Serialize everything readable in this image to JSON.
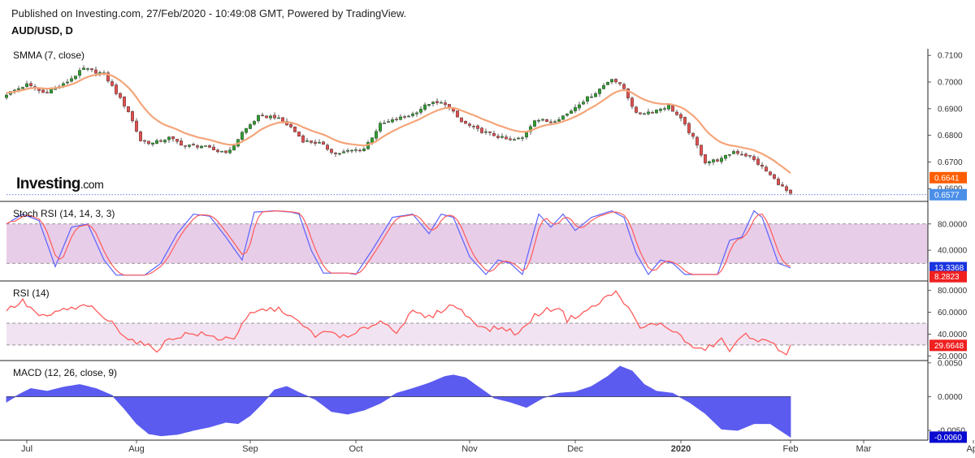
{
  "header": {
    "published": "Published on Investing.com, 27/Feb/2020 - 10:49:08 GMT, Powered by TradingView.",
    "symbol": "AUD/USD, D"
  },
  "logo": {
    "text": "Investing",
    "suffix": ".com"
  },
  "colors": {
    "up": "#2e9e2e",
    "down": "#e05050",
    "smma": "#f4a57a",
    "stoch_k": "#5b62ff",
    "stoch_d": "#ff5b5b",
    "rsi": "#ff5b5b",
    "macd": "#5b5bf0",
    "band": "#e8cde8",
    "rsi_band": "#f1e3f1"
  },
  "chart_data": [
    {
      "type": "candlestick",
      "title": "SMMA (7, close)",
      "y_ticks": [
        "0.7100",
        "0.7000",
        "0.6900",
        "0.6800",
        "0.6700",
        "0.6600"
      ],
      "ylim": [
        0.6555,
        0.7125
      ],
      "last_price": "0.6577",
      "last_smma": "0.6641",
      "knots": [
        [
          0,
          0.6955
        ],
        [
          5,
          0.699
        ],
        [
          9,
          0.696
        ],
        [
          14,
          0.699
        ],
        [
          19,
          0.705
        ],
        [
          24,
          0.703
        ],
        [
          27,
          0.696
        ],
        [
          30,
          0.689
        ],
        [
          33,
          0.678
        ],
        [
          36,
          0.677
        ],
        [
          40,
          0.679
        ],
        [
          44,
          0.676
        ],
        [
          48,
          0.676
        ],
        [
          52,
          0.674
        ],
        [
          55,
          0.674
        ],
        [
          58,
          0.681
        ],
        [
          62,
          0.687
        ],
        [
          66,
          0.687
        ],
        [
          70,
          0.683
        ],
        [
          73,
          0.678
        ],
        [
          77,
          0.677
        ],
        [
          81,
          0.673
        ],
        [
          84,
          0.674
        ],
        [
          88,
          0.675
        ],
        [
          92,
          0.684
        ],
        [
          96,
          0.686
        ],
        [
          100,
          0.688
        ],
        [
          104,
          0.692
        ],
        [
          108,
          0.692
        ],
        [
          112,
          0.685
        ],
        [
          116,
          0.682
        ],
        [
          120,
          0.68
        ],
        [
          124,
          0.678
        ],
        [
          127,
          0.679
        ],
        [
          130,
          0.686
        ],
        [
          134,
          0.685
        ],
        [
          138,
          0.688
        ],
        [
          141,
          0.692
        ],
        [
          145,
          0.696
        ],
        [
          149,
          0.7015
        ],
        [
          152,
          0.6975
        ],
        [
          155,
          0.688
        ],
        [
          159,
          0.689
        ],
        [
          163,
          0.691
        ],
        [
          166,
          0.686
        ],
        [
          169,
          0.679
        ],
        [
          172,
          0.67
        ],
        [
          176,
          0.671
        ],
        [
          179,
          0.674
        ],
        [
          183,
          0.672
        ],
        [
          186,
          0.668
        ],
        [
          190,
          0.662
        ],
        [
          193,
          0.6577
        ]
      ],
      "x_labels": [
        {
          "label": "Jul",
          "day": 5
        },
        {
          "label": "Aug",
          "day": 32
        },
        {
          "label": "Sep",
          "day": 60
        },
        {
          "label": "Oct",
          "day": 86
        },
        {
          "label": "Nov",
          "day": 114
        },
        {
          "label": "Dec",
          "day": 140
        },
        {
          "label": "2020",
          "day": 166
        },
        {
          "label": "Feb",
          "day": 193
        },
        {
          "label": "Mar",
          "day": 211
        },
        {
          "label": "Apr",
          "day": 238
        }
      ]
    },
    {
      "type": "line",
      "title": "Stoch RSI (14, 14, 3, 3)",
      "y_ticks": [
        "80.0000",
        "40.0000"
      ],
      "ylim": [
        -2,
        102
      ],
      "band": [
        20,
        80
      ],
      "last_k": "13.3368",
      "last_d": "8.2823",
      "knots": [
        [
          0,
          80
        ],
        [
          4,
          95
        ],
        [
          8,
          85
        ],
        [
          12,
          15
        ],
        [
          16,
          75
        ],
        [
          20,
          80
        ],
        [
          24,
          25
        ],
        [
          27,
          2
        ],
        [
          34,
          2
        ],
        [
          38,
          20
        ],
        [
          42,
          65
        ],
        [
          46,
          95
        ],
        [
          50,
          92
        ],
        [
          54,
          60
        ],
        [
          58,
          25
        ],
        [
          61,
          98
        ],
        [
          66,
          100
        ],
        [
          70,
          98
        ],
        [
          72,
          95
        ],
        [
          75,
          40
        ],
        [
          78,
          5
        ],
        [
          84,
          5
        ],
        [
          86,
          3
        ],
        [
          90,
          40
        ],
        [
          95,
          90
        ],
        [
          100,
          95
        ],
        [
          104,
          65
        ],
        [
          107,
          95
        ],
        [
          110,
          90
        ],
        [
          114,
          30
        ],
        [
          118,
          3
        ],
        [
          121,
          25
        ],
        [
          124,
          20
        ],
        [
          127,
          3
        ],
        [
          131,
          95
        ],
        [
          134,
          75
        ],
        [
          137,
          95
        ],
        [
          140,
          70
        ],
        [
          144,
          90
        ],
        [
          149,
          100
        ],
        [
          152,
          90
        ],
        [
          155,
          35
        ],
        [
          158,
          3
        ],
        [
          161,
          25
        ],
        [
          164,
          20
        ],
        [
          167,
          3
        ],
        [
          171,
          3
        ],
        [
          175,
          3
        ],
        [
          178,
          55
        ],
        [
          181,
          60
        ],
        [
          184,
          100
        ],
        [
          186,
          90
        ],
        [
          190,
          20
        ],
        [
          193,
          13
        ]
      ]
    },
    {
      "type": "line",
      "title": "RSI (14)",
      "y_ticks": [
        "80.0000",
        "60.0000",
        "40.0000",
        "20.0000"
      ],
      "ylim": [
        18,
        82
      ],
      "band": [
        30,
        50
      ],
      "last_value": "29.6648",
      "knots": [
        [
          0,
          62
        ],
        [
          4,
          70
        ],
        [
          8,
          57
        ],
        [
          10,
          55
        ],
        [
          13,
          62
        ],
        [
          17,
          63
        ],
        [
          20,
          67
        ],
        [
          22,
          60
        ],
        [
          26,
          50
        ],
        [
          30,
          36
        ],
        [
          34,
          30
        ],
        [
          37,
          26
        ],
        [
          40,
          35
        ],
        [
          44,
          40
        ],
        [
          48,
          40
        ],
        [
          52,
          36
        ],
        [
          56,
          37
        ],
        [
          60,
          58
        ],
        [
          64,
          63
        ],
        [
          68,
          62
        ],
        [
          72,
          50
        ],
        [
          76,
          39
        ],
        [
          80,
          42
        ],
        [
          84,
          36
        ],
        [
          88,
          45
        ],
        [
          92,
          52
        ],
        [
          96,
          43
        ],
        [
          100,
          60
        ],
        [
          104,
          55
        ],
        [
          108,
          64
        ],
        [
          110,
          67
        ],
        [
          114,
          55
        ],
        [
          118,
          44
        ],
        [
          122,
          46
        ],
        [
          126,
          40
        ],
        [
          130,
          57
        ],
        [
          133,
          62
        ],
        [
          136,
          65
        ],
        [
          138,
          53
        ],
        [
          142,
          60
        ],
        [
          145,
          66
        ],
        [
          148,
          75
        ],
        [
          150,
          78
        ],
        [
          152,
          70
        ],
        [
          156,
          45
        ],
        [
          160,
          50
        ],
        [
          164,
          44
        ],
        [
          167,
          34
        ],
        [
          170,
          25
        ],
        [
          173,
          28
        ],
        [
          176,
          35
        ],
        [
          178,
          25
        ],
        [
          182,
          40
        ],
        [
          185,
          35
        ],
        [
          189,
          30
        ],
        [
          192,
          22
        ],
        [
          193,
          30
        ]
      ]
    },
    {
      "type": "area",
      "title": "MACD (12, 26, close, 9)",
      "y_ticks": [
        "0.0050",
        "0.0000",
        "-0.0050"
      ],
      "ylim": [
        -0.0062,
        0.0051
      ],
      "last_value": "-0.0060",
      "knots": [
        [
          0,
          -0.0008
        ],
        [
          3,
          0.0003
        ],
        [
          6,
          0.0012
        ],
        [
          10,
          0.0008
        ],
        [
          14,
          0.0014
        ],
        [
          18,
          0.0018
        ],
        [
          22,
          0.0012
        ],
        [
          26,
          0.0002
        ],
        [
          29,
          -0.0018
        ],
        [
          32,
          -0.004
        ],
        [
          35,
          -0.0055
        ],
        [
          38,
          -0.0058
        ],
        [
          42,
          -0.0056
        ],
        [
          46,
          -0.005
        ],
        [
          50,
          -0.0045
        ],
        [
          54,
          -0.0038
        ],
        [
          57,
          -0.004
        ],
        [
          60,
          -0.0028
        ],
        [
          63,
          -0.001
        ],
        [
          66,
          0.001
        ],
        [
          69,
          0.0015
        ],
        [
          72,
          0.0006
        ],
        [
          76,
          -0.0004
        ],
        [
          80,
          -0.0022
        ],
        [
          84,
          -0.0026
        ],
        [
          88,
          -0.002
        ],
        [
          92,
          -0.001
        ],
        [
          96,
          0.0005
        ],
        [
          100,
          0.0012
        ],
        [
          104,
          0.002
        ],
        [
          108,
          0.003
        ],
        [
          110,
          0.0032
        ],
        [
          113,
          0.0028
        ],
        [
          116,
          0.0015
        ],
        [
          120,
          -0.0002
        ],
        [
          124,
          -0.0008
        ],
        [
          128,
          -0.0016
        ],
        [
          132,
          -0.0002
        ],
        [
          136,
          0.0005
        ],
        [
          140,
          0.0007
        ],
        [
          144,
          0.0015
        ],
        [
          148,
          0.003
        ],
        [
          151,
          0.0045
        ],
        [
          154,
          0.0038
        ],
        [
          157,
          0.0018
        ],
        [
          160,
          0.0008
        ],
        [
          164,
          0.0005
        ],
        [
          168,
          -0.0008
        ],
        [
          172,
          -0.0025
        ],
        [
          176,
          -0.0048
        ],
        [
          180,
          -0.005
        ],
        [
          184,
          -0.004
        ],
        [
          188,
          -0.004
        ],
        [
          193,
          -0.006
        ]
      ]
    }
  ]
}
